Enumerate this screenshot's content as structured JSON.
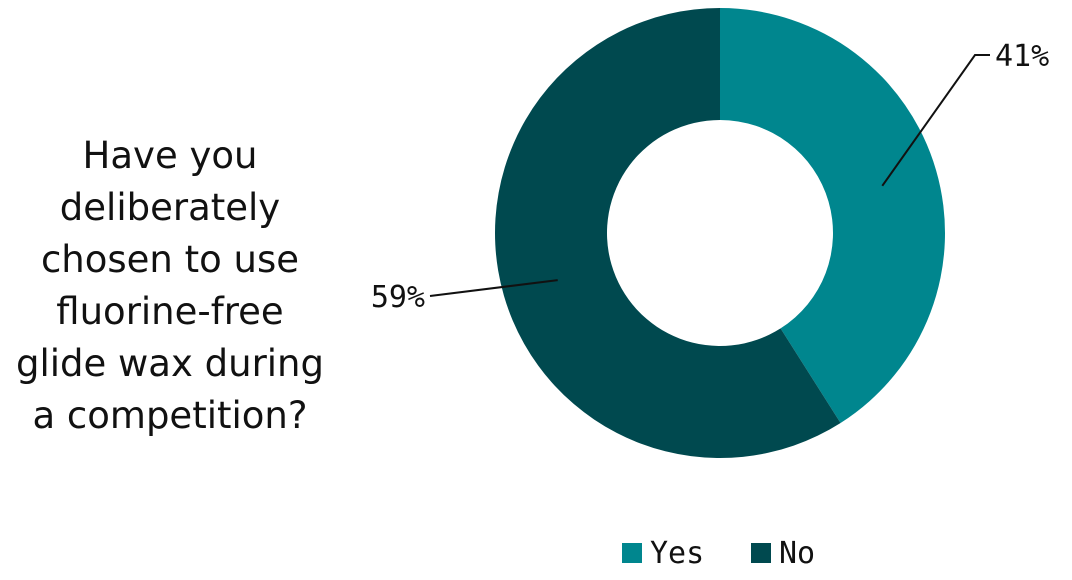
{
  "question_lines": [
    "Have you",
    "deliberately",
    "chosen to use",
    "fluorine-free",
    "glide wax during",
    "a competition?"
  ],
  "chart_data": {
    "type": "pie",
    "donut": true,
    "title": "Have you deliberately chosen to use fluorine-free glide wax during a competition?",
    "categories": [
      "Yes",
      "No"
    ],
    "values": [
      41,
      59
    ],
    "labels": [
      "41%",
      "59%"
    ],
    "colors": [
      "#00868e",
      "#00494f"
    ],
    "legend_position": "bottom"
  }
}
